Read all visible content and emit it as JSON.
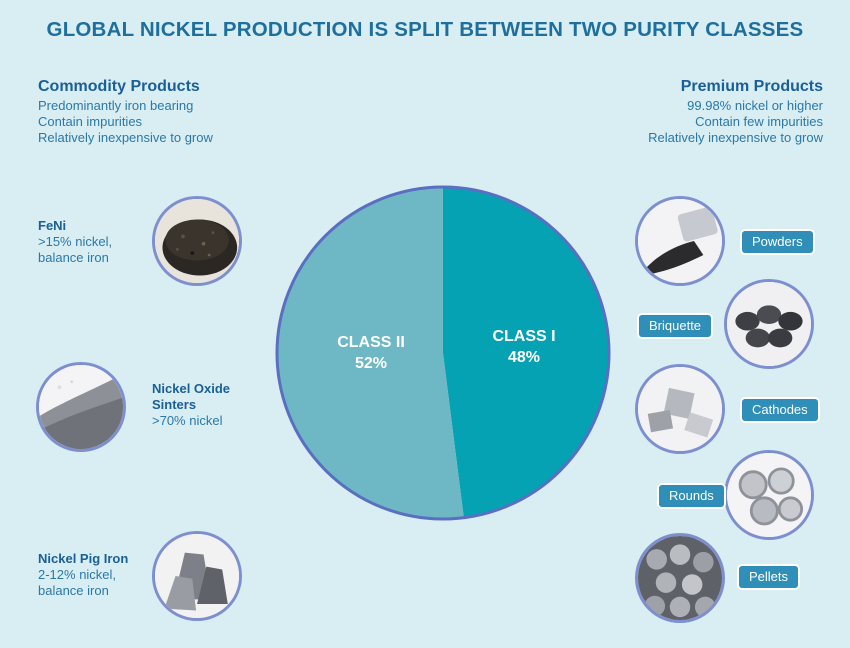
{
  "title": "GLOBAL NICKEL PRODUCTION IS SPLIT BETWEEN TWO PURITY CLASSES",
  "commodity": {
    "heading": "Commodity Products",
    "lines": [
      "Predominantly iron  bearing",
      "Contain impurities",
      "Relatively inexpensive to grow"
    ],
    "items": [
      {
        "name": "FeNi",
        "desc1": ">15% nickel,",
        "desc2": "balance iron"
      },
      {
        "name1": "Nickel Oxide",
        "name2": "Sinters",
        "desc1": ">70% nickel"
      },
      {
        "name": "Nickel Pig Iron",
        "desc1": "2-12% nickel,",
        "desc2": "balance iron"
      }
    ]
  },
  "premium": {
    "heading": "Premium Products",
    "lines": [
      "99.98% nickel or higher",
      "Contain few impurities",
      "Relatively inexpensive to grow"
    ],
    "items": [
      "Powders",
      "Briquette",
      "Cathodes",
      "Rounds",
      "Pellets"
    ]
  },
  "colors": {
    "class_i": "#05a2b4",
    "class_ii": "#6eb8c5",
    "pie_border": "#5a6ec2",
    "title": "#1e6f9e"
  },
  "chart_data": {
    "type": "pie",
    "title": "",
    "slices": [
      {
        "label": "CLASS I",
        "value": 48,
        "value_label": "48%"
      },
      {
        "label": "CLASS II",
        "value": 52,
        "value_label": "52%"
      }
    ]
  }
}
